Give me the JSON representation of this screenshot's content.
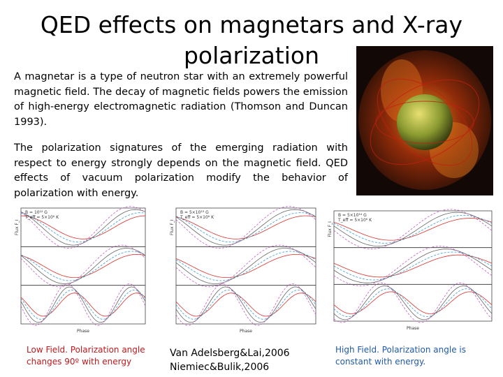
{
  "title": "QED effects on magnetars and X-ray polarization",
  "paragraphs": [
    "A magnetar is a type of neutron star with an extremely powerful magnetic field. The decay of magnetic fields powers the emission of high-energy electromagnetic radiation (Thomson and Duncan 1993).",
    "The polarization signatures of the emerging radiation with respect to energy strongly depends on the magnetic field. QED effects of vacuum polarization modify the behavior of polarization with energy."
  ],
  "panels": [
    {
      "labels": [
        "B = 10¹² G",
        "T_eff = 5×10⁶ K"
      ],
      "y_label": "Flux F_I",
      "x_label": "Phase"
    },
    {
      "labels": [
        "B = 5×10¹³ G",
        "T_eff = 5×10⁶ K"
      ],
      "y_label": "Flux F_I",
      "x_label": "Phase"
    },
    {
      "labels": [
        "B = 5×10¹⁴ G",
        "T_eff = 5×10⁶ K"
      ],
      "y_label": "Flux F_I",
      "x_label": "Phase"
    }
  ],
  "captions": {
    "low_field": [
      "Low Field. Polarization angle",
      "changes 90º with energy"
    ],
    "references": [
      "Van Adelsberg&Lai,2006",
      "Niemiec&Bulik,2006"
    ],
    "high_field": [
      "High  Field. Polarization angle  is",
      "constant with energy."
    ]
  }
}
